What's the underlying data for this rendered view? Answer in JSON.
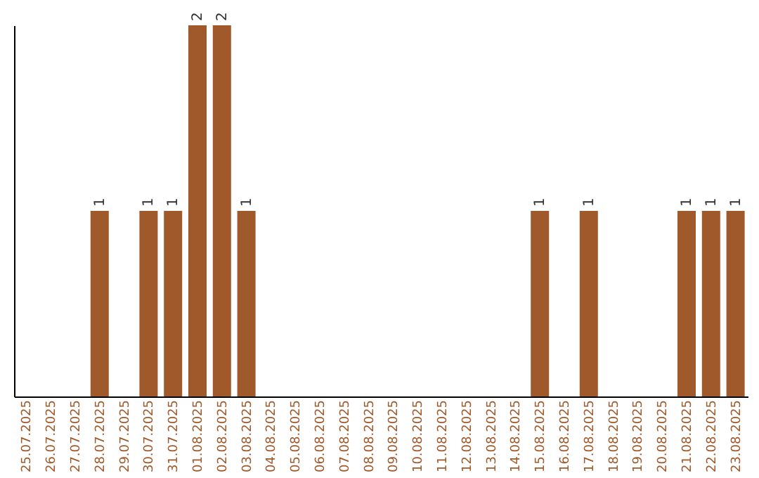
{
  "chart_data": {
    "type": "bar",
    "categories": [
      "25.07.2025",
      "26.07.2025",
      "27.07.2025",
      "28.07.2025",
      "29.07.2025",
      "30.07.2025",
      "31.07.2025",
      "01.08.2025",
      "02.08.2025",
      "03.08.2025",
      "04.08.2025",
      "05.08.2025",
      "06.08.2025",
      "07.08.2025",
      "08.08.2025",
      "09.08.2025",
      "10.08.2025",
      "11.08.2025",
      "12.08.2025",
      "13.08.2025",
      "14.08.2025",
      "15.08.2025",
      "16.08.2025",
      "17.08.2025",
      "18.08.2025",
      "19.08.2025",
      "20.08.2025",
      "21.08.2025",
      "22.08.2025",
      "23.08.2025"
    ],
    "values": [
      0,
      0,
      0,
      1,
      0,
      1,
      1,
      2,
      2,
      1,
      0,
      0,
      0,
      0,
      0,
      0,
      0,
      0,
      0,
      0,
      0,
      1,
      0,
      1,
      0,
      0,
      0,
      1,
      1,
      1
    ],
    "value_labels": [
      null,
      null,
      null,
      "1",
      null,
      "1",
      "1",
      "2",
      "2",
      "1",
      null,
      null,
      null,
      null,
      null,
      null,
      null,
      null,
      null,
      null,
      null,
      "1",
      null,
      "1",
      null,
      null,
      null,
      "1",
      "1",
      "1"
    ],
    "color": "#a0592a",
    "ylim": [
      0,
      2
    ],
    "tick_labels": "x",
    "grid": false
  }
}
